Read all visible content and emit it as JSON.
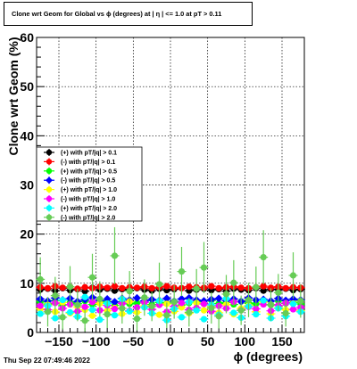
{
  "header": {
    "title": "Clone wrt Geom for Global vs ϕ (degrees) at |  η | <= 1.0 at pT > 0.11"
  },
  "footer": {
    "timestamp": "Thu Sep 22 07:49:46 2022"
  },
  "chart_data": {
    "type": "scatter",
    "title": "Clone wrt Geom for Global vs ϕ (degrees) at |  η | <= 1.0 at pT > 0.11",
    "xlabel": "ϕ (degrees)",
    "ylabel": "Clone wrt Geom (%)",
    "xlim": [
      -180,
      180
    ],
    "ylim": [
      0,
      60
    ],
    "xticks": [
      -150,
      -100,
      -50,
      0,
      50,
      100,
      150
    ],
    "xtick_labels": [
      "−150",
      "−100",
      "−50",
      "0",
      "50",
      "100",
      "150"
    ],
    "yticks": [
      0,
      10,
      20,
      30,
      40,
      50,
      60
    ],
    "ytick_labels": [
      "0",
      "10",
      "20",
      "30",
      "40",
      "50",
      "60"
    ],
    "grid": true,
    "legend_position": "left-middle",
    "series": [
      {
        "name": "(+) with pT/|q| > 0.1",
        "color": "#000000",
        "marker": "circle",
        "x": [
          -175,
          -165,
          -155,
          -145,
          -135,
          -125,
          -115,
          -105,
          -95,
          -85,
          -75,
          -65,
          -55,
          -45,
          -35,
          -25,
          -15,
          -5,
          5,
          15,
          25,
          35,
          45,
          55,
          65,
          75,
          85,
          95,
          105,
          115,
          125,
          135,
          145,
          155,
          165,
          175
        ],
        "y": [
          8.7,
          8.9,
          8.5,
          9.0,
          8.6,
          8.8,
          8.4,
          9.1,
          8.7,
          8.9,
          8.5,
          8.8,
          8.6,
          9.0,
          8.7,
          8.5,
          8.9,
          8.6,
          8.8,
          9.0,
          8.5,
          8.7,
          8.9,
          8.6,
          8.8,
          8.4,
          8.9,
          8.7,
          8.6,
          9.0,
          8.5,
          8.8,
          8.7,
          8.9,
          8.6,
          8.8
        ]
      },
      {
        "name": "(-) with pT/|q| > 0.1",
        "color": "#ff0000",
        "marker": "circle",
        "x": [
          -175,
          -165,
          -155,
          -145,
          -135,
          -125,
          -115,
          -105,
          -95,
          -85,
          -75,
          -65,
          -55,
          -45,
          -35,
          -25,
          -15,
          -5,
          5,
          15,
          25,
          35,
          45,
          55,
          65,
          75,
          85,
          95,
          105,
          115,
          125,
          135,
          145,
          155,
          165,
          175
        ],
        "y": [
          9.2,
          9.0,
          9.4,
          9.1,
          9.3,
          8.9,
          9.2,
          9.0,
          9.3,
          9.1,
          9.4,
          9.0,
          9.2,
          9.1,
          9.3,
          9.0,
          9.2,
          9.4,
          9.1,
          9.0,
          9.3,
          9.2,
          9.1,
          9.4,
          9.0,
          9.2,
          9.3,
          9.1,
          9.0,
          9.2,
          9.4,
          9.1,
          9.3,
          9.0,
          9.2,
          9.1
        ]
      },
      {
        "name": "(+) with pT/|q| > 0.5",
        "color": "#00ff00",
        "marker": "circle",
        "x": [
          -175,
          -165,
          -155,
          -145,
          -135,
          -125,
          -115,
          -105,
          -95,
          -85,
          -75,
          -65,
          -55,
          -45,
          -35,
          -25,
          -15,
          -5,
          5,
          15,
          25,
          35,
          45,
          55,
          65,
          75,
          85,
          95,
          105,
          115,
          125,
          135,
          145,
          155,
          165,
          175
        ],
        "y": [
          6.2,
          5.8,
          6.5,
          5.6,
          6.1,
          5.9,
          6.4,
          5.7,
          6.0,
          6.3,
          5.5,
          6.2,
          5.8,
          6.0,
          6.4,
          5.7,
          6.1,
          5.9,
          6.3,
          5.6,
          6.0,
          6.2,
          5.8,
          6.5,
          5.9,
          6.1,
          5.7,
          6.3,
          6.0,
          5.8,
          6.2,
          5.6,
          6.4,
          5.9,
          6.1,
          5.8
        ]
      },
      {
        "name": "(-) with pT/|q| > 0.5",
        "color": "#0000ff",
        "marker": "diamond",
        "x": [
          -175,
          -165,
          -155,
          -145,
          -135,
          -125,
          -115,
          -105,
          -95,
          -85,
          -75,
          -65,
          -55,
          -45,
          -35,
          -25,
          -15,
          -5,
          5,
          15,
          25,
          35,
          45,
          55,
          65,
          75,
          85,
          95,
          105,
          115,
          125,
          135,
          145,
          155,
          165,
          175
        ],
        "y": [
          6.8,
          6.4,
          7.0,
          6.6,
          6.9,
          6.3,
          6.7,
          7.1,
          6.5,
          6.8,
          6.2,
          6.9,
          6.6,
          7.0,
          6.4,
          6.7,
          6.5,
          6.9,
          6.3,
          6.8,
          7.0,
          6.6,
          6.4,
          6.7,
          6.9,
          6.5,
          6.8,
          6.3,
          7.0,
          6.6,
          6.7,
          6.4,
          6.9,
          6.5,
          6.8,
          6.6
        ]
      },
      {
        "name": "(+) with pT/|q| > 1.0",
        "color": "#ffff00",
        "marker": "circle",
        "x": [
          -175,
          -165,
          -155,
          -145,
          -135,
          -125,
          -115,
          -105,
          -95,
          -85,
          -75,
          -65,
          -55,
          -45,
          -35,
          -25,
          -15,
          -5,
          5,
          15,
          25,
          35,
          45,
          55,
          65,
          75,
          85,
          95,
          105,
          115,
          125,
          135,
          145,
          155,
          165,
          175
        ],
        "y": [
          4.8,
          5.6,
          4.2,
          6.1,
          3.9,
          5.2,
          4.6,
          3.4,
          5.9,
          4.4,
          5.0,
          3.8,
          6.3,
          4.1,
          5.4,
          4.7,
          3.6,
          5.8,
          4.3,
          5.1,
          3.9,
          6.0,
          4.5,
          5.3,
          4.0,
          5.7,
          3.7,
          4.9,
          5.5,
          4.2,
          6.2,
          3.8,
          5.0,
          4.6,
          5.9,
          4.4
        ]
      },
      {
        "name": "(-) with pT/|q| > 1.0",
        "color": "#ff00ff",
        "marker": "circle",
        "x": [
          -175,
          -165,
          -155,
          -145,
          -135,
          -125,
          -115,
          -105,
          -95,
          -85,
          -75,
          -65,
          -55,
          -45,
          -35,
          -25,
          -15,
          -5,
          5,
          15,
          25,
          35,
          45,
          55,
          65,
          75,
          85,
          95,
          105,
          115,
          125,
          135,
          145,
          155,
          165,
          175
        ],
        "y": [
          5.4,
          4.6,
          6.0,
          4.9,
          5.7,
          4.3,
          5.2,
          6.2,
          4.5,
          5.5,
          4.8,
          5.9,
          4.4,
          5.1,
          6.1,
          4.7,
          5.6,
          4.2,
          5.3,
          6.0,
          4.6,
          5.0,
          5.8,
          4.3,
          5.4,
          4.9,
          6.2,
          4.5,
          5.2,
          4.8,
          5.7,
          4.4,
          5.5,
          6.0,
          4.7,
          5.1
        ]
      },
      {
        "name": "(+) with pT/|q| > 2.0",
        "color": "#00ffff",
        "marker": "circle",
        "x": [
          -175,
          -165,
          -155,
          -145,
          -135,
          -125,
          -115,
          -105,
          -95,
          -85,
          -75,
          -65,
          -55,
          -45,
          -35,
          -25,
          -15,
          -5,
          5,
          15,
          25,
          35,
          45,
          55,
          65,
          75,
          85,
          95,
          105,
          115,
          125,
          135,
          145,
          155,
          165,
          175
        ],
        "y": [
          3.8,
          5.4,
          2.9,
          6.6,
          4.1,
          3.2,
          7.2,
          4.6,
          2.6,
          5.9,
          3.5,
          6.8,
          4.3,
          2.8,
          5.1,
          3.9,
          6.4,
          2.5,
          4.8,
          3.1,
          6.2,
          4.5,
          2.7,
          5.6,
          3.6,
          6.9,
          4.0,
          3.0,
          5.3,
          3.7,
          6.5,
          2.9,
          4.9,
          3.3,
          5.8,
          4.2
        ]
      },
      {
        "name": "(-) with pT/|q| > 2.0",
        "color": "#66cc55",
        "marker": "circle",
        "x": [
          -175,
          -165,
          -155,
          -145,
          -135,
          -125,
          -115,
          -105,
          -95,
          -85,
          -75,
          -65,
          -55,
          -45,
          -35,
          -25,
          -15,
          -5,
          5,
          15,
          25,
          35,
          45,
          55,
          65,
          75,
          85,
          95,
          105,
          115,
          125,
          135,
          145,
          155,
          165,
          175
        ],
        "y": [
          10.8,
          4.2,
          7.5,
          3.1,
          9.3,
          5.6,
          2.4,
          11.2,
          6.8,
          3.7,
          15.6,
          4.9,
          8.4,
          2.8,
          7.1,
          5.3,
          9.8,
          3.5,
          6.2,
          12.4,
          4.1,
          8.9,
          13.2,
          5.0,
          3.3,
          7.8,
          10.1,
          4.5,
          6.6,
          9.2,
          15.3,
          5.7,
          8.1,
          3.9,
          11.6,
          6.4
        ],
        "err": [
          4.5,
          3.0,
          3.8,
          2.5,
          4.2,
          3.3,
          2.2,
          4.8,
          3.6,
          2.8,
          5.8,
          3.1,
          4.1,
          2.4,
          3.7,
          3.0,
          4.4,
          2.6,
          3.4,
          5.0,
          2.9,
          4.0,
          5.2,
          3.2,
          2.5,
          3.9,
          4.6,
          3.0,
          3.5,
          4.2,
          5.5,
          3.3,
          3.8,
          2.7,
          4.7,
          3.4
        ]
      }
    ]
  }
}
